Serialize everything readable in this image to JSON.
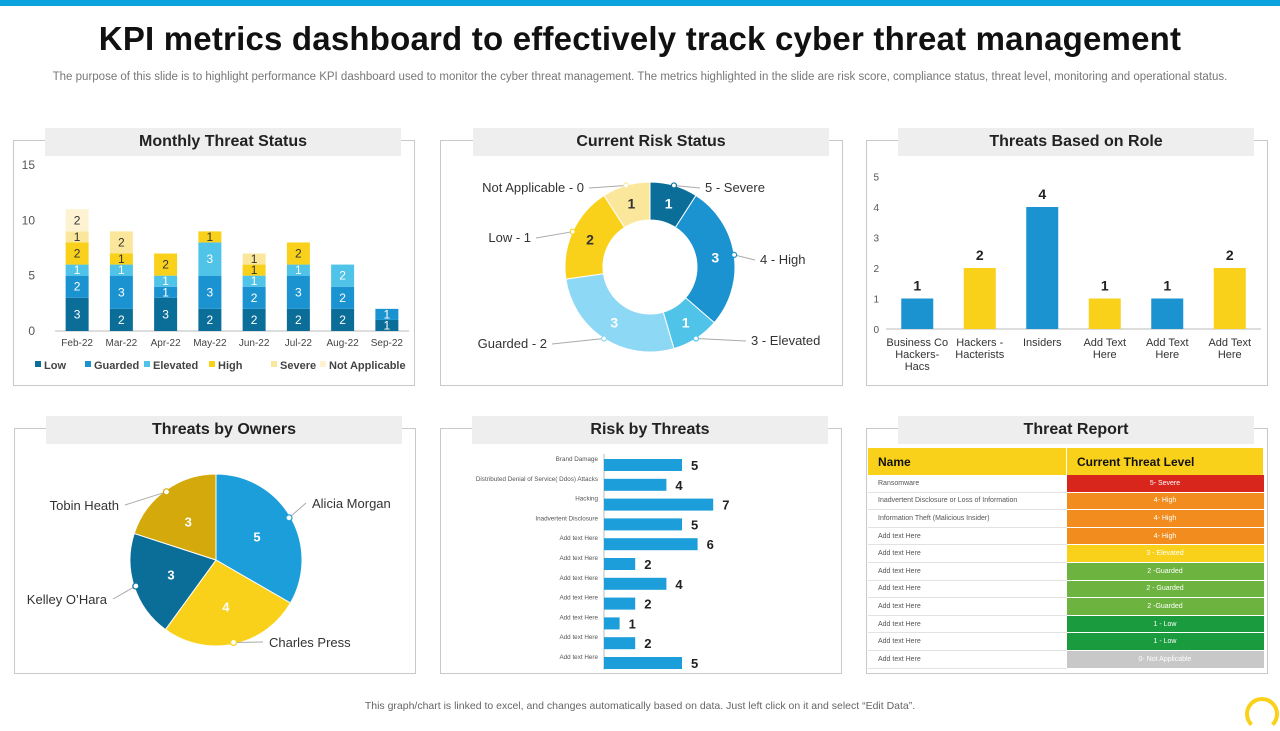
{
  "title": "KPI metrics dashboard to effectively track cyber threat management",
  "subtitle": "The purpose of this slide is to highlight performance KPI dashboard used to monitor the cyber threat management. The metrics highlighted in the slide are risk score, compliance status, threat level, monitoring and operational status.",
  "footer": "This graph/chart is linked to excel, and changes automatically based on data. Just left click on it and select “Edit Data”.",
  "panels": {
    "monthly": "Monthly Threat Status",
    "risk": "Current Risk Status",
    "role": "Threats Based on Role",
    "owners": "Threats by Owners",
    "rbt": "Risk by Threats",
    "report": "Threat Report"
  },
  "colors": {
    "Low": "#0B6E99",
    "Guarded": "#1B93D1",
    "Elevated": "#4FC3E8",
    "High": "#F9D11A",
    "Severe": "#FBE79B",
    "Not Applicable": "#FDF3D2"
  },
  "chart_data": [
    {
      "type": "bar",
      "stacked": true,
      "id": "monthly",
      "title": "Monthly Threat Status",
      "categories": [
        "Feb-22",
        "Mar-22",
        "Apr-22",
        "May-22",
        "Jun-22",
        "Jul-22",
        "Aug-22",
        "Sep-22"
      ],
      "ylim": [
        0,
        15
      ],
      "yticks": [
        0,
        5,
        10,
        15
      ],
      "legend": "bottom",
      "series": [
        {
          "name": "Low",
          "values": [
            3,
            2,
            3,
            2,
            2,
            2,
            2,
            1
          ]
        },
        {
          "name": "Guarded",
          "values": [
            2,
            3,
            1,
            3,
            2,
            3,
            2,
            1
          ]
        },
        {
          "name": "Elevated",
          "values": [
            1,
            1,
            1,
            3,
            1,
            1,
            2,
            0
          ]
        },
        {
          "name": "High",
          "values": [
            2,
            1,
            2,
            1,
            1,
            2,
            0,
            0
          ]
        },
        {
          "name": "Severe",
          "values": [
            1,
            2,
            0,
            0,
            1,
            0,
            0,
            0
          ]
        },
        {
          "name": "Not Applicable",
          "values": [
            2,
            0,
            0,
            0,
            0,
            0,
            0,
            0
          ]
        }
      ]
    },
    {
      "type": "pie",
      "id": "risk",
      "donut": true,
      "title": "Current Risk Status",
      "slices": [
        {
          "label": "5 - Severe",
          "value": 1,
          "color": "#0B6E99"
        },
        {
          "label": "4 - High",
          "value": 3,
          "color": "#1B93D1"
        },
        {
          "label": "3 - Elevated",
          "value": 1,
          "color": "#4FC3E8"
        },
        {
          "label": "Guarded - 2",
          "value": 3,
          "color": "#8DD8F5"
        },
        {
          "label": "Low - 1",
          "value": 2,
          "color": "#F9D11A"
        },
        {
          "label": "Not Applicable - 0",
          "value": 1,
          "color": "#FBE79B"
        }
      ]
    },
    {
      "type": "bar",
      "id": "role",
      "title": "Threats Based on Role",
      "categories": [
        "Business Co Hackers- Hacs",
        "Hackers - Hacterists",
        "Insiders",
        "Add Text Here",
        "Add Text Here",
        "Add Text Here"
      ],
      "values": [
        1,
        2,
        4,
        1,
        1,
        2
      ],
      "colors": [
        "#1B93D1",
        "#F9D11A",
        "#1B93D1",
        "#F9D11A",
        "#1B93D1",
        "#F9D11A"
      ],
      "ylim": [
        0,
        5
      ],
      "yticks": [
        0,
        1,
        2,
        3,
        4,
        5
      ]
    },
    {
      "type": "pie",
      "id": "owners",
      "title": "Threats by Owners",
      "slices": [
        {
          "label": "Alicia Morgan",
          "value": 5,
          "color": "#1B9ED9"
        },
        {
          "label": "Charles Press",
          "value": 4,
          "color": "#F9D11A"
        },
        {
          "label": "Kelley O’Hara",
          "value": 3,
          "color": "#0B6E99"
        },
        {
          "label": "Tobin Heath",
          "value": 3,
          "color": "#D4A90C"
        }
      ]
    },
    {
      "type": "bar",
      "orientation": "horizontal",
      "id": "rbt",
      "title": "Risk by Threats",
      "categories": [
        "Brand Damage",
        "Distributed Denial of Service( Ddos) Attacks",
        "Hacking",
        "Inadvertent Disclosure",
        "Add text Here",
        "Add text Here",
        "Add text Here",
        "Add text Here",
        "Add text Here",
        "Add text Here",
        "Add text Here"
      ],
      "values": [
        5,
        4,
        7,
        5,
        6,
        2,
        4,
        2,
        1,
        2,
        5
      ],
      "color": "#1B9ED9",
      "xlim": [
        0,
        8
      ]
    },
    {
      "type": "table",
      "id": "report",
      "title": "Threat Report",
      "headers": [
        "Name",
        "Current Threat Level"
      ],
      "rows": [
        {
          "name": "Ransomware",
          "level": "5- Severe",
          "color": "#D9261C"
        },
        {
          "name": "Inadvertent Disclosure or Loss of Information",
          "level": "4- High",
          "color": "#F28C1E"
        },
        {
          "name": "Information Theft (Malicious Insider)",
          "level": "4- High",
          "color": "#F28C1E"
        },
        {
          "name": "Add text Here",
          "level": "4- High",
          "color": "#F28C1E"
        },
        {
          "name": "Add text Here",
          "level": "3 - Elevated",
          "color": "#F9D11A"
        },
        {
          "name": "Add text Here",
          "level": "2 -Guarded",
          "color": "#6DB33F"
        },
        {
          "name": "Add text Here",
          "level": "2 - Guarded",
          "color": "#6DB33F"
        },
        {
          "name": "Add text Here",
          "level": "2 -Guarded",
          "color": "#6DB33F"
        },
        {
          "name": "Add text Here",
          "level": "1 - Low",
          "color": "#1A9B3E"
        },
        {
          "name": "Add text Here",
          "level": "1 - Low",
          "color": "#1A9B3E"
        },
        {
          "name": "Add text Here",
          "level": "0- Not Applicable",
          "color": "#C8C8C8"
        }
      ]
    }
  ]
}
